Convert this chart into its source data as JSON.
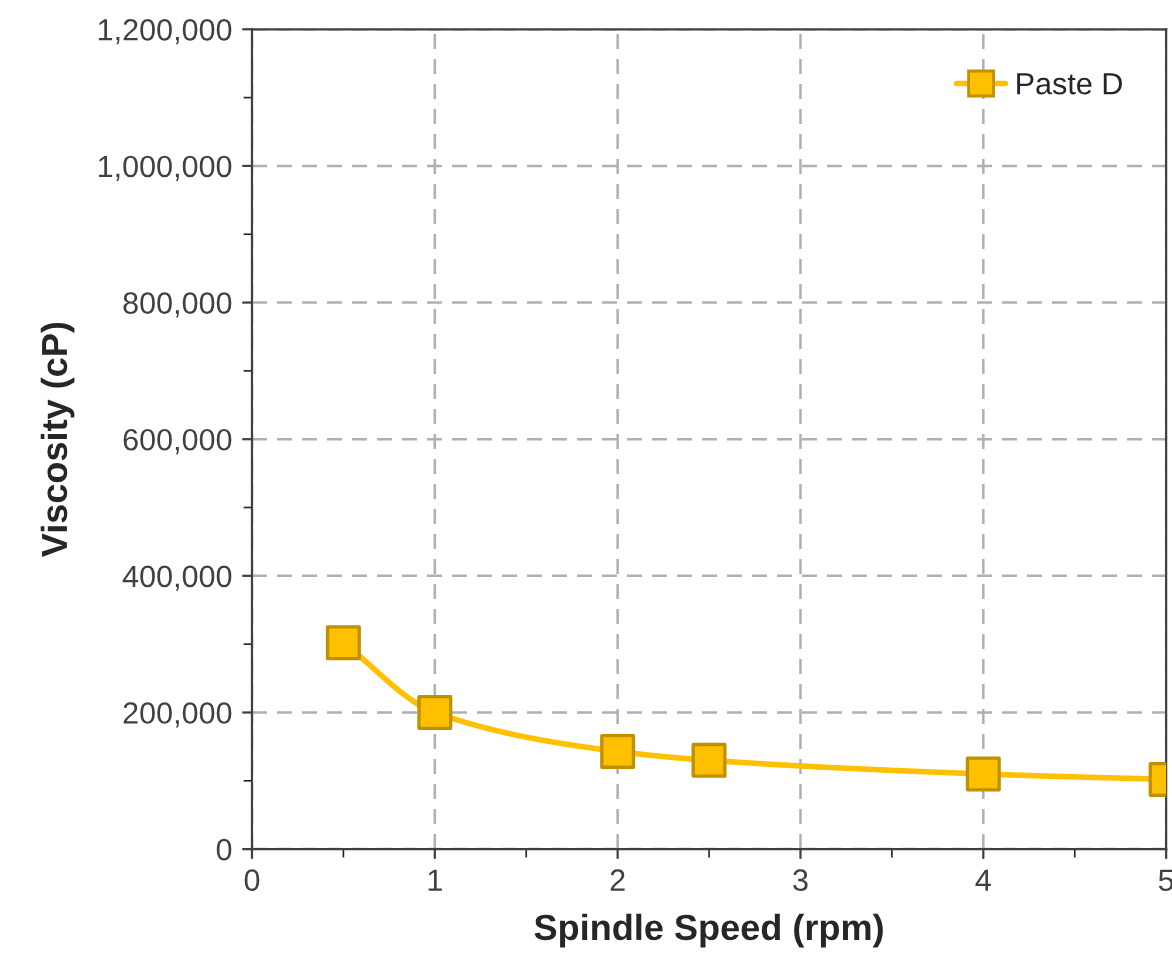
{
  "chart_data": {
    "type": "line",
    "xlabel": "Spindle Speed (rpm)",
    "ylabel": "Viscosity (cP)",
    "series": [
      {
        "name": "Paste D",
        "color": "#ffc000",
        "x": [
          0.5,
          1,
          2,
          2.5,
          4,
          5
        ],
        "values": [
          302000,
          200000,
          143000,
          130000,
          110000,
          102000
        ]
      }
    ],
    "xlim": [
      0,
      5
    ],
    "xticks": [
      0,
      1,
      2,
      3,
      4,
      5
    ],
    "ylim": [
      0,
      1200000
    ],
    "yticks": [
      0,
      {
        "value": 200000,
        "label": "200,000"
      },
      {
        "value": 400000,
        "label": "400,000"
      },
      {
        "value": 600000,
        "label": "600,000"
      },
      {
        "value": 800000,
        "label": "800,000"
      },
      {
        "value": 1000000,
        "label": "1,000,000"
      },
      {
        "value": 1200000,
        "label": "1,200,000"
      }
    ],
    "grid": true,
    "legend": "top right",
    "marker": "square",
    "line_style": "solid"
  }
}
